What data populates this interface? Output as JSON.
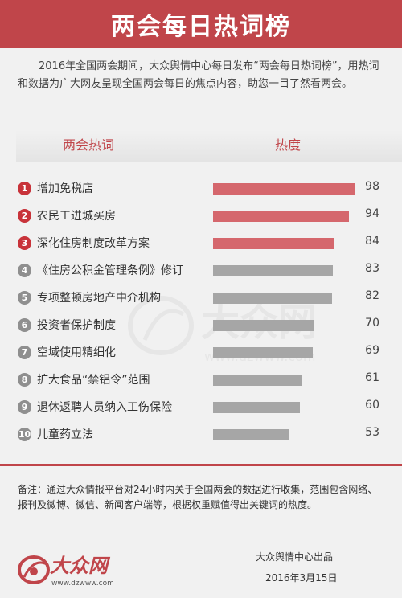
{
  "header": {
    "title": "两会每日热词榜"
  },
  "intro": "2016年全国两会期间，大众舆情中心每日发布“两会每日热词榜”，用热词和数据为广大网友呈现全国两会每日的焦点内容，助您一目了然看两会。",
  "columns": {
    "term": "两会热词",
    "heat": "热度"
  },
  "chart_data": {
    "type": "bar",
    "orientation": "horizontal",
    "categories": [
      "增加免税店",
      "农民工进城买房",
      "深化住房制度改革方案",
      "《住房公积金管理条例》修订",
      "专项整顿房地产中介机构",
      "投资者保护制度",
      "空域使用精细化",
      "扩大食品“禁铝令”范围",
      "退休返聘人员纳入工伤保险",
      "儿童药立法"
    ],
    "ranks": [
      "1",
      "2",
      "3",
      "4",
      "5",
      "6",
      "7",
      "8",
      "9",
      "10"
    ],
    "values": [
      98,
      94,
      84,
      83,
      82,
      70,
      69,
      61,
      60,
      53
    ],
    "highlight_top": 3,
    "colors": {
      "top": "#d5676d",
      "rest": "#a6a6a6",
      "badge_top": "#c8333a",
      "badge_rest": "#8f8f8f"
    },
    "xlim": [
      0,
      100
    ],
    "grid": false,
    "legend": "none"
  },
  "note": "备注：通过大众情报平台对24小时内关于全国两会的数据进行收集，范围包含网络、报刊及微博、微信、新闻客户端等，根据权重赋值得出关键词的热度。",
  "footer": {
    "logo_text": "大众网",
    "logo_url": "www.dzwww.com",
    "credit": "大众舆情中心出品",
    "date": "2016年3月15日"
  },
  "watermark": {
    "text": "大众网",
    "url": "www.dzwww.com"
  },
  "brand_color": "#c0454a"
}
